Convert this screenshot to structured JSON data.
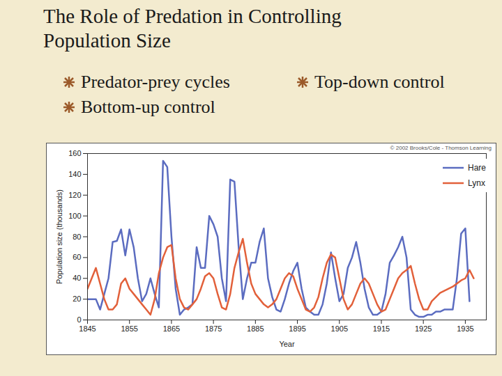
{
  "slide": {
    "title": "The Role of Predation in Controlling Population Size",
    "bullet_columns": [
      [
        "Predator-prey cycles",
        "Bottom-up control"
      ],
      [
        "Top-down control"
      ]
    ]
  },
  "chart_data": {
    "type": "line",
    "xlabel": "Year",
    "ylabel": "Population size (thousands)",
    "annotations": [
      "© 2002 Brooks/Cole - Thomson Learning"
    ],
    "x": [
      1845,
      1846,
      1847,
      1848,
      1849,
      1850,
      1851,
      1852,
      1853,
      1854,
      1855,
      1856,
      1857,
      1858,
      1859,
      1860,
      1861,
      1862,
      1863,
      1864,
      1865,
      1866,
      1867,
      1868,
      1869,
      1870,
      1871,
      1872,
      1873,
      1874,
      1875,
      1876,
      1877,
      1878,
      1879,
      1880,
      1881,
      1882,
      1883,
      1884,
      1885,
      1886,
      1887,
      1888,
      1889,
      1890,
      1891,
      1892,
      1893,
      1894,
      1895,
      1896,
      1897,
      1898,
      1899,
      1900,
      1901,
      1902,
      1903,
      1904,
      1905,
      1906,
      1907,
      1908,
      1909,
      1910,
      1911,
      1912,
      1913,
      1914,
      1915,
      1916,
      1917,
      1918,
      1919,
      1920,
      1921,
      1922,
      1923,
      1924,
      1925,
      1926,
      1927,
      1928,
      1929,
      1930,
      1931,
      1932,
      1933,
      1934,
      1935,
      1936,
      1937
    ],
    "series": [
      {
        "name": "Hare",
        "color": "#5b6cc0",
        "values": [
          20,
          20,
          20,
          10,
          25,
          40,
          75,
          76,
          87,
          62,
          87,
          70,
          40,
          18,
          25,
          40,
          25,
          12,
          153,
          147,
          80,
          30,
          5,
          10,
          12,
          15,
          70,
          50,
          50,
          100,
          92,
          80,
          40,
          18,
          135,
          133,
          70,
          20,
          40,
          55,
          55,
          75,
          88,
          40,
          22,
          10,
          8,
          20,
          35,
          47,
          55,
          30,
          12,
          8,
          5,
          5,
          15,
          35,
          65,
          40,
          18,
          25,
          50,
          60,
          75,
          55,
          30,
          12,
          5,
          5,
          8,
          25,
          55,
          62,
          70,
          80,
          60,
          10,
          5,
          3,
          3,
          5,
          5,
          8,
          8,
          10,
          10,
          10,
          40,
          83,
          88,
          18,
          null
        ]
      },
      {
        "name": "Lynx",
        "color": "#e2603a",
        "values": [
          30,
          40,
          50,
          35,
          20,
          10,
          10,
          15,
          35,
          40,
          30,
          25,
          20,
          15,
          10,
          5,
          20,
          45,
          60,
          70,
          72,
          40,
          20,
          12,
          10,
          15,
          20,
          30,
          42,
          45,
          40,
          25,
          12,
          10,
          25,
          50,
          65,
          78,
          55,
          35,
          25,
          20,
          15,
          12,
          15,
          20,
          30,
          40,
          45,
          42,
          30,
          20,
          10,
          8,
          12,
          22,
          40,
          55,
          63,
          60,
          40,
          20,
          10,
          15,
          25,
          35,
          40,
          35,
          25,
          15,
          8,
          10,
          20,
          30,
          40,
          45,
          48,
          52,
          35,
          20,
          10,
          10,
          18,
          22,
          26,
          28,
          30,
          32,
          35,
          38,
          40,
          48,
          40
        ]
      }
    ],
    "xlim": [
      1845,
      1940
    ],
    "xticks": [
      1845,
      1855,
      1865,
      1875,
      1885,
      1895,
      1905,
      1915,
      1925,
      1935
    ],
    "ylim": [
      0,
      160
    ],
    "yticks": [
      0,
      20,
      40,
      60,
      80,
      100,
      120,
      140,
      160
    ],
    "grid": false,
    "legend": "top-right"
  }
}
